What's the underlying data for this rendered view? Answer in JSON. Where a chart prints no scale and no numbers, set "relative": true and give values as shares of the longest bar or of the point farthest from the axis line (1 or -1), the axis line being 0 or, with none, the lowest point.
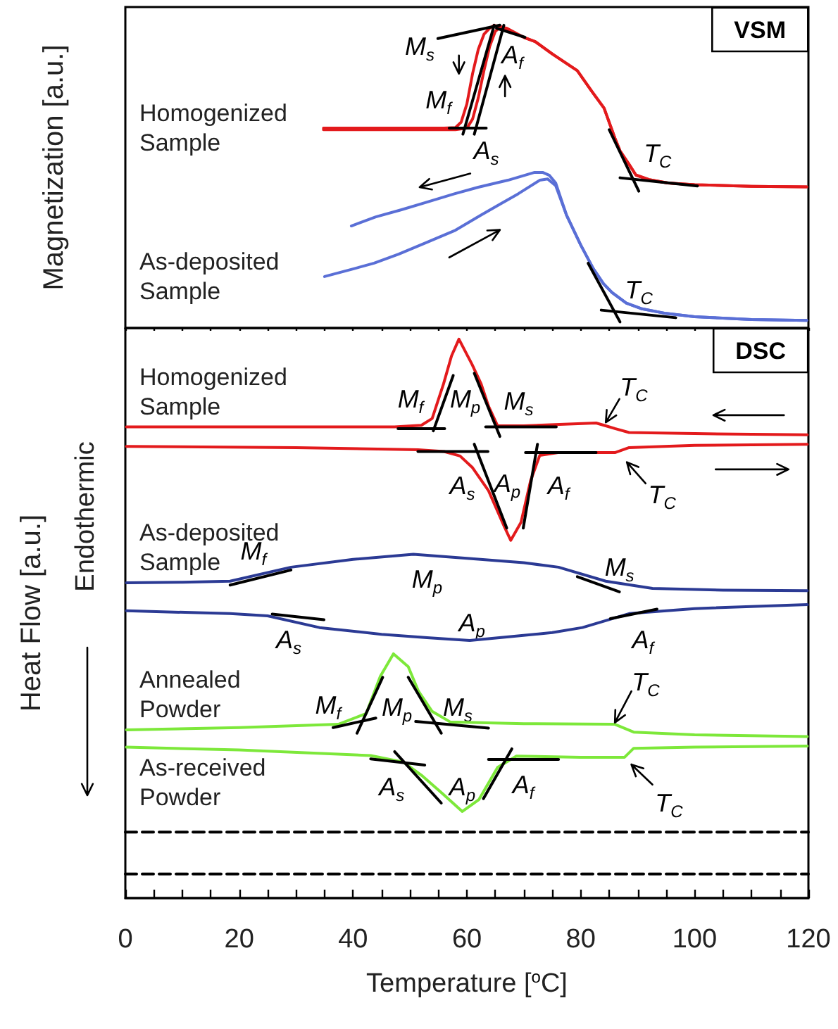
{
  "chart_data": [
    {
      "type": "line",
      "title": "VSM",
      "ylabel": "Magnetization [a.u.]",
      "relative": true,
      "marker": "none",
      "tick_labels": false,
      "xlim": [
        0,
        120
      ],
      "xticks": [
        0,
        {
          "value": 5,
          "label": null
        },
        {
          "value": 10,
          "label": null
        },
        {
          "value": 15,
          "label": null
        },
        20,
        {
          "value": 25,
          "label": null
        },
        {
          "value": 30,
          "label": null
        },
        {
          "value": 35,
          "label": null
        },
        40,
        {
          "value": 45,
          "label": null
        },
        {
          "value": 50,
          "label": null
        },
        {
          "value": 55,
          "label": null
        },
        60,
        {
          "value": 65,
          "label": null
        },
        {
          "value": 70,
          "label": null
        },
        {
          "value": 75,
          "label": null
        },
        80,
        {
          "value": 85,
          "label": null
        },
        {
          "value": 90,
          "label": null
        },
        {
          "value": 95,
          "label": null
        },
        100,
        {
          "value": 105,
          "label": null
        },
        {
          "value": 110,
          "label": null
        },
        {
          "value": 115,
          "label": null
        },
        120
      ],
      "series": [
        {
          "name": "Homogenized Sample",
          "color": "#e31a1c",
          "x": [
            34.8,
            50,
            56,
            58,
            59,
            60,
            61,
            62,
            63,
            64,
            64.8,
            67,
            70,
            72,
            75,
            79.4,
            82,
            84.1,
            86,
            86.9,
            88.5,
            89.7,
            92,
            95.3,
            100,
            110,
            119.7
          ],
          "values": [
            0.66,
            0.66,
            0.66,
            0.662,
            0.68,
            0.74,
            0.84,
            0.92,
            0.97,
            0.99,
            1.0,
            0.985,
            0.96,
            0.946,
            0.905,
            0.85,
            0.78,
            0.726,
            0.627,
            0.585,
            0.54,
            0.505,
            0.49,
            0.479,
            0.473,
            0.468,
            0.466
          ]
        },
        {
          "color": "#e31a1c",
          "x": [
            34.8,
            50,
            56,
            58,
            60,
            61,
            62,
            63,
            64,
            65,
            66,
            67,
            70,
            72,
            75,
            79.4,
            82,
            84.1,
            86,
            86.9,
            88.5,
            89.7,
            92,
            95.3,
            100,
            110,
            119.7
          ],
          "values": [
            0.655,
            0.655,
            0.655,
            0.655,
            0.66,
            0.69,
            0.76,
            0.85,
            0.93,
            0.98,
            0.995,
            0.99,
            0.96,
            0.946,
            0.905,
            0.85,
            0.78,
            0.726,
            0.627,
            0.585,
            0.54,
            0.505,
            0.49,
            0.479,
            0.473,
            0.468,
            0.466
          ]
        },
        {
          "name": "As-deposited Sample",
          "color": "#5a6fd6",
          "x": [
            35,
            40,
            43.7,
            48,
            53.1,
            58,
            62.5,
            66,
            69,
            72.8,
            74.2,
            75.6,
            77.5,
            80,
            82.2,
            84,
            85.5,
            88,
            90.6,
            95,
            100,
            110,
            119.7
          ],
          "values": [
            0.17,
            0.195,
            0.214,
            0.244,
            0.284,
            0.323,
            0.373,
            0.411,
            0.443,
            0.488,
            0.492,
            0.47,
            0.373,
            0.274,
            0.196,
            0.146,
            0.117,
            0.082,
            0.064,
            0.048,
            0.037,
            0.028,
            0.025
          ]
        },
        {
          "color": "#5a6fd6",
          "x": [
            39.7,
            44,
            48.4,
            53,
            57.8,
            62,
            67.2,
            71.9,
            73.3,
            74.5,
            75.6,
            77.5,
            80,
            82.2,
            84,
            85.5,
            88,
            90.6,
            95,
            100,
            110,
            119.7
          ],
          "values": [
            0.337,
            0.367,
            0.39,
            0.416,
            0.443,
            0.465,
            0.488,
            0.514,
            0.514,
            0.504,
            0.479,
            0.373,
            0.274,
            0.196,
            0.146,
            0.117,
            0.082,
            0.064,
            0.048,
            0.037,
            0.028,
            0.025
          ]
        },
        {
          "color": "#000000",
          "x": [
            59.3,
            64.8
          ],
          "values": [
            0.64,
            1.0
          ]
        },
        {
          "color": "#000000",
          "x": [
            61.3,
            66.5
          ],
          "values": [
            0.64,
            1.0
          ]
        },
        {
          "color": "#000000",
          "x": [
            56.9,
            63.4
          ],
          "values": [
            0.66,
            0.66
          ]
        },
        {
          "color": "#000000",
          "x": [
            54.9,
            65.8
          ],
          "values": [
            0.956,
            1.0
          ]
        },
        {
          "color": "#000000",
          "x": [
            65.2,
            70.2
          ],
          "values": [
            0.99,
            0.96
          ]
        },
        {
          "color": "#000000",
          "x": [
            85.0,
            90.2
          ],
          "values": [
            0.655,
            0.452
          ]
        },
        {
          "color": "#000000",
          "x": [
            86.9,
            100.5
          ],
          "values": [
            0.496,
            0.469
          ]
        },
        {
          "color": "#000000",
          "x": [
            81.3,
            86.9
          ],
          "values": [
            0.214,
            0.02
          ]
        },
        {
          "color": "#000000",
          "x": [
            83.6,
            96.7
          ],
          "values": [
            0.059,
            0.034
          ]
        }
      ],
      "annotations": [
        "M$_{s}$",
        "A$_{f}$",
        "M$_{f}$",
        "A$_{s}$",
        "T$_{C}$",
        "T$_{C}$"
      ]
    },
    {
      "type": "line",
      "title": "DSC",
      "ylabel": "Heat Flow [a.u.]",
      "xlabel": "Temperature [$^{o}$C]",
      "relative": true,
      "marker": "none",
      "xlim": [
        0,
        120
      ],
      "xticks": [
        0,
        {
          "value": 5,
          "label": null
        },
        {
          "value": 10,
          "label": null
        },
        {
          "value": 15,
          "label": null
        },
        20,
        {
          "value": 25,
          "label": null
        },
        {
          "value": 30,
          "label": null
        },
        {
          "value": 35,
          "label": null
        },
        40,
        {
          "value": 45,
          "label": null
        },
        {
          "value": 50,
          "label": null
        },
        {
          "value": 55,
          "label": null
        },
        60,
        {
          "value": 65,
          "label": null
        },
        {
          "value": 70,
          "label": null
        },
        {
          "value": 75,
          "label": null
        },
        80,
        {
          "value": 85,
          "label": null
        },
        {
          "value": 90,
          "label": null
        },
        {
          "value": 95,
          "label": null
        },
        100,
        {
          "value": 105,
          "label": null
        },
        {
          "value": 110,
          "label": null
        },
        {
          "value": 115,
          "label": null
        },
        120
      ],
      "series": [
        {
          "name": "Homogenized Sample",
          "color": "#e31a1c",
          "x": [
            0.2,
            20,
            47.3,
            52,
            53.9,
            55.9,
            57.3,
            58.6,
            60.9,
            62.5,
            63.8,
            65.4,
            70,
            82.7,
            84.4,
            86,
            88.5,
            100,
            119.8
          ],
          "values": [
            0.843,
            0.843,
            0.843,
            0.846,
            0.858,
            0.92,
            0.97,
            1.0,
            0.955,
            0.92,
            0.88,
            0.845,
            0.845,
            0.85,
            0.845,
            0.84,
            0.833,
            0.831,
            0.829
          ]
        },
        {
          "color": "#e31a1c",
          "x": [
            0.2,
            30,
            51.4,
            56,
            58.8,
            61,
            63.8,
            66.6,
            67.7,
            69.5,
            71.2,
            72.8,
            76,
            82.7,
            86,
            88.5,
            100,
            119.8
          ],
          "values": [
            0.808,
            0.806,
            0.802,
            0.799,
            0.791,
            0.77,
            0.729,
            0.664,
            0.64,
            0.672,
            0.747,
            0.792,
            0.797,
            0.797,
            0.797,
            0.806,
            0.81,
            0.812
          ]
        },
        {
          "name": "As-deposited Sample",
          "color": "#2b3a94",
          "x": [
            0.2,
            10,
            18.4,
            29.1,
            40,
            50.6,
            60,
            70,
            76.1,
            84.4,
            92.6,
            105,
            119.8
          ],
          "values": [
            0.564,
            0.565,
            0.567,
            0.592,
            0.606,
            0.615,
            0.608,
            0.6,
            0.592,
            0.567,
            0.554,
            0.551,
            0.55
          ]
        },
        {
          "color": "#2b3a94",
          "x": [
            0.2,
            18.4,
            25,
            34.1,
            45,
            53,
            60.5,
            68,
            75,
            80.3,
            88.5,
            100,
            119.8
          ],
          "values": [
            0.514,
            0.509,
            0.505,
            0.484,
            0.472,
            0.466,
            0.461,
            0.468,
            0.475,
            0.484,
            0.509,
            0.518,
            0.525
          ]
        },
        {
          "name": "Annealed Powder",
          "color": "#7de83a",
          "x": [
            0.2,
            20,
            37.4,
            42.3,
            44.8,
            47.1,
            49.7,
            51.5,
            53.9,
            57.1,
            70,
            86,
            89.3,
            100,
            119.8
          ],
          "values": [
            0.301,
            0.305,
            0.311,
            0.33,
            0.397,
            0.437,
            0.414,
            0.37,
            0.334,
            0.315,
            0.312,
            0.311,
            0.297,
            0.292,
            0.289
          ]
        },
        {
          "name": "As-received Powder",
          "color": "#7de83a",
          "x": [
            0.2,
            20,
            43.1,
            48.9,
            52,
            55.5,
            59.2,
            62.1,
            65.4,
            68.7,
            80,
            87.7,
            89.3,
            100,
            119.8
          ],
          "values": [
            0.27,
            0.265,
            0.255,
            0.243,
            0.22,
            0.189,
            0.155,
            0.176,
            0.234,
            0.254,
            0.252,
            0.252,
            0.268,
            0.27,
            0.272
          ]
        },
        {
          "color": "#000000",
          "line_style": "dashed",
          "x": [
            0,
            120
          ],
          "values": [
            0.118,
            0.118
          ]
        },
        {
          "color": "#000000",
          "line_style": "dashed",
          "x": [
            0,
            120
          ],
          "values": [
            0.043,
            0.043
          ]
        },
        {
          "color": "#000000",
          "x": [
            47.9,
            56.1
          ],
          "values": [
            0.84,
            0.84
          ]
        },
        {
          "color": "#000000",
          "x": [
            54.1,
            57.6
          ],
          "values": [
            0.836,
            0.935
          ]
        },
        {
          "color": "#000000",
          "x": [
            61.3,
            65.8
          ],
          "values": [
            0.939,
            0.826
          ]
        },
        {
          "color": "#000000",
          "x": [
            63.3,
            75.7
          ],
          "values": [
            0.843,
            0.843
          ]
        },
        {
          "color": "#000000",
          "x": [
            51.4,
            63.7
          ],
          "values": [
            0.799,
            0.799
          ]
        },
        {
          "color": "#000000",
          "x": [
            61.3,
            67.0
          ],
          "values": [
            0.812,
            0.662
          ]
        },
        {
          "color": "#000000",
          "x": [
            69.9,
            72.4
          ],
          "values": [
            0.662,
            0.812
          ]
        },
        {
          "color": "#000000",
          "x": [
            70.3,
            82.7
          ],
          "values": [
            0.797,
            0.797
          ]
        },
        {
          "color": "#000000",
          "x": [
            18.4,
            29.1
          ],
          "values": [
            0.56,
            0.587
          ]
        },
        {
          "color": "#000000",
          "x": [
            79.4,
            86.8
          ],
          "values": [
            0.575,
            0.548
          ]
        },
        {
          "color": "#000000",
          "x": [
            25.8,
            34.9
          ],
          "values": [
            0.508,
            0.498
          ]
        },
        {
          "color": "#000000",
          "x": [
            85.2,
            93.4
          ],
          "values": [
            0.5,
            0.517
          ]
        },
        {
          "color": "#000000",
          "x": [
            36.5,
            44
          ],
          "values": [
            0.305,
            0.322
          ]
        },
        {
          "color": "#000000",
          "x": [
            40.7,
            45.2
          ],
          "values": [
            0.295,
            0.395
          ]
        },
        {
          "color": "#000000",
          "x": [
            49.7,
            55.5
          ],
          "values": [
            0.395,
            0.295
          ]
        },
        {
          "color": "#000000",
          "x": [
            51,
            63.8
          ],
          "values": [
            0.316,
            0.304
          ]
        },
        {
          "color": "#000000",
          "x": [
            43.1,
            52.6
          ],
          "values": [
            0.249,
            0.238
          ]
        },
        {
          "color": "#000000",
          "x": [
            47.3,
            55.5
          ],
          "values": [
            0.262,
            0.17
          ]
        },
        {
          "color": "#000000",
          "x": [
            62.9,
            67.9
          ],
          "values": [
            0.178,
            0.267
          ]
        },
        {
          "color": "#000000",
          "x": [
            63.8,
            76.1
          ],
          "values": [
            0.248,
            0.248
          ]
        }
      ],
      "annotations": [
        "Endothermic",
        "M$_{f}$",
        "M$_{p}$",
        "M$_{s}$",
        "T$_{C}$",
        "A$_{s}$",
        "A$_{p}$",
        "A$_{f}$",
        "T$_{C}$",
        "M$_{f}$",
        "M$_{p}$",
        "M$_{s}$",
        "A$_{s}$",
        "A$_{p}$",
        "A$_{f}$",
        "M$_{f}$",
        "M$_{p}$",
        "M$_{s}$",
        "T$_{C}$",
        "A$_{s}$",
        "A$_{p}$",
        "A$_{f}$",
        "T$_{C}$"
      ]
    }
  ]
}
